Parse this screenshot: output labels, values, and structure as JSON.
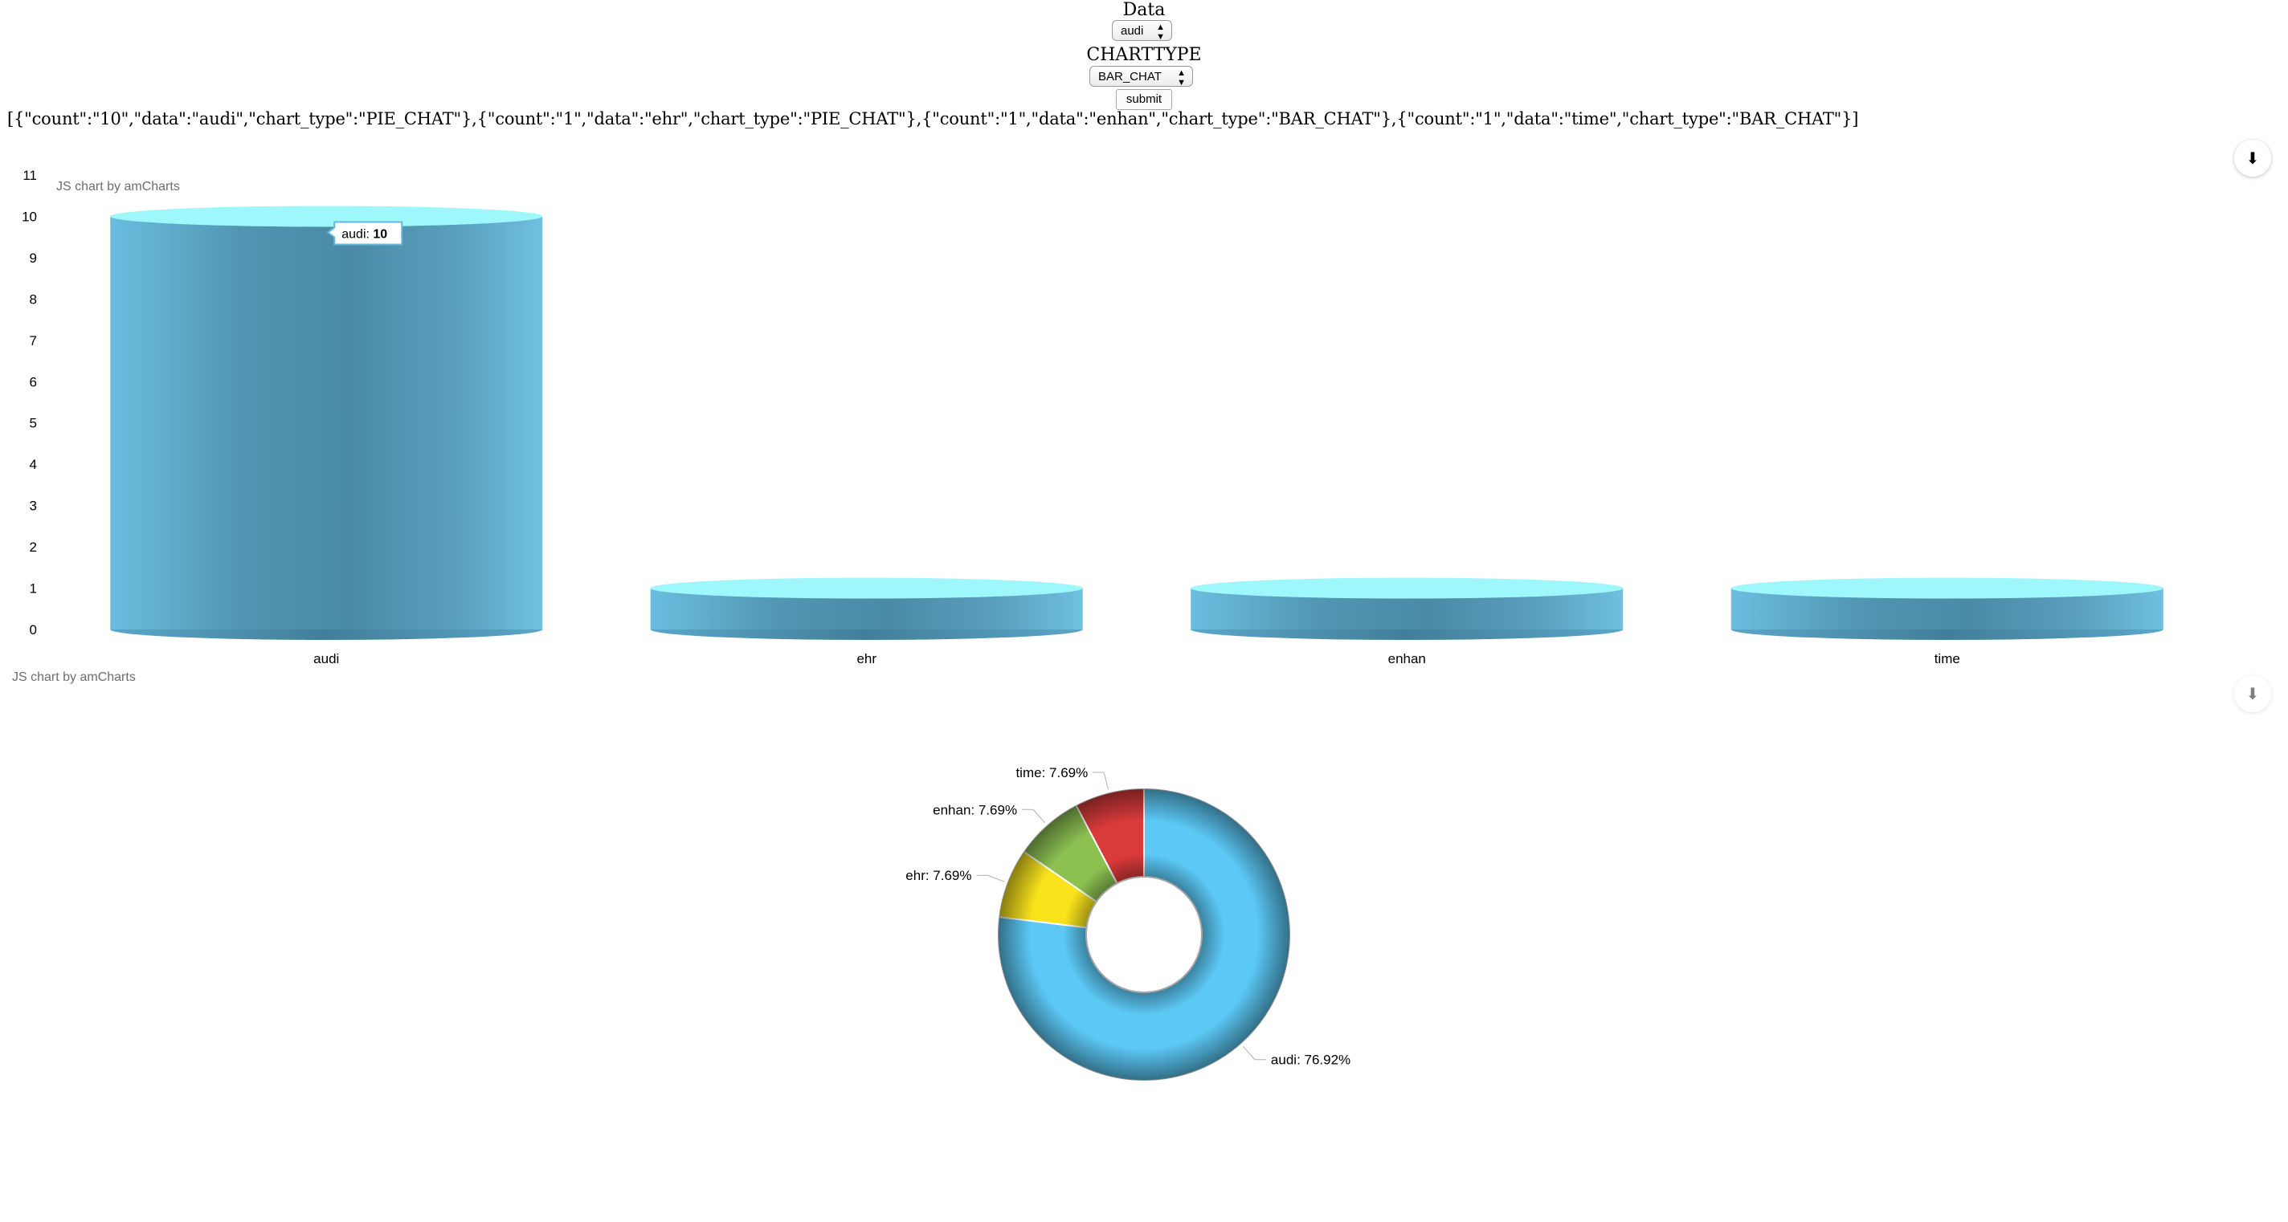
{
  "form": {
    "data_label": "Data",
    "data_select_value": "audi",
    "charttype_label": "CHARTTYPE",
    "charttype_select_value": "BAR_CHAT",
    "submit_label": "submit"
  },
  "json_output": "[{\"count\":\"10\",\"data\":\"audi\",\"chart_type\":\"PIE_CHAT\"},{\"count\":\"1\",\"data\":\"ehr\",\"chart_type\":\"PIE_CHAT\"},{\"count\":\"1\",\"data\":\"enhan\",\"chart_type\":\"BAR_CHAT\"},{\"count\":\"1\",\"data\":\"time\",\"chart_type\":\"BAR_CHAT\"}]",
  "icons": {
    "download": "download-icon"
  },
  "chart_data": [
    {
      "type": "bar",
      "style": "3d-cylinder",
      "credit": "JS chart by amCharts",
      "categories": [
        "audi",
        "ehr",
        "enhan",
        "time"
      ],
      "values": [
        10,
        1,
        1,
        1
      ],
      "ylim": [
        0,
        11
      ],
      "yticks": [
        0,
        1,
        2,
        3,
        4,
        5,
        6,
        7,
        8,
        9,
        10,
        11
      ],
      "grid": false,
      "color": "#67b7dc",
      "top_color": "#9ef7fb",
      "tooltip": {
        "category": "audi",
        "label": "audi: ",
        "value": "10"
      }
    },
    {
      "type": "pie",
      "style": "donut",
      "credit": "JS chart by amCharts",
      "slices": [
        {
          "name": "audi",
          "value": 10,
          "label": "audi: 76.92%",
          "color": "#5bc8f5"
        },
        {
          "name": "ehr",
          "value": 1,
          "label": "ehr: 7.69%",
          "color": "#f8e21b"
        },
        {
          "name": "enhan",
          "value": 1,
          "label": "enhan: 7.69%",
          "color": "#8cc152"
        },
        {
          "name": "time",
          "value": 1,
          "label": "time: 7.69%",
          "color": "#d93a3a"
        }
      ]
    }
  ]
}
